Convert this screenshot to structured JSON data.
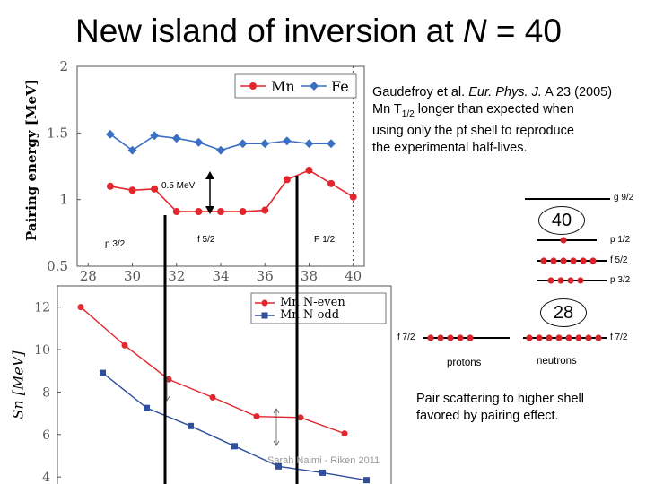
{
  "slide": {
    "title_text": "New island of inversion at ",
    "title_var": "N",
    "title_rest": " = 40"
  },
  "reference": {
    "line1_pre": "Gaudefroy et al. ",
    "line1_journal": "Eur. Phys.  J.",
    "line1_post": " A 23 (2005)",
    "line2_pre": "Mn T",
    "line2_sub": "1/2",
    "line2_post": " longer than expected when",
    "line3": "using only the pf shell to reproduce",
    "line4": "the experimental half-lives."
  },
  "annotations": {
    "gap": "0.5 MeV",
    "p32": "p 3/2",
    "f52": "f 5/2",
    "p12": "P 1/2"
  },
  "shell_diagram": {
    "g92": "g 9/2",
    "magic_40": "40",
    "n_p12": "p 1/2",
    "n_f52": "f 5/2",
    "n_p32": "p 3/2",
    "magic_28": "28",
    "p_f72": "f 7/2",
    "n_f72": "f 7/2",
    "protons": "protons",
    "neutrons": "neutrons"
  },
  "conclusion": {
    "line1": "Pair scattering to higher shell",
    "line2": "favored by pairing effect."
  },
  "footer": "Sarah Naimi - Riken 2011",
  "chart_data": [
    {
      "type": "line",
      "ylabel": "Pairing energy [MeV]",
      "ylim": [
        0.5,
        2
      ],
      "xlim": [
        27.5,
        40.5
      ],
      "x_ticks": [
        28,
        30,
        32,
        34,
        36,
        38,
        40
      ],
      "y_ticks": [
        "0.5",
        "1",
        "1.5",
        "2"
      ],
      "legend_position": "top-right",
      "dashed_x": 40,
      "series": [
        {
          "name": "Mn",
          "color": "#e3262e",
          "marker": "circle",
          "x": [
            29,
            30,
            31,
            32,
            33,
            34,
            35,
            36,
            37,
            38,
            39,
            40
          ],
          "y": [
            1.1,
            1.07,
            1.08,
            0.91,
            0.91,
            0.91,
            0.91,
            0.92,
            1.15,
            1.22,
            1.12,
            1.02
          ]
        },
        {
          "name": "Fe",
          "color": "#3a6fc4",
          "marker": "diamond",
          "x": [
            29,
            30,
            31,
            32,
            33,
            34,
            35,
            36,
            37,
            38,
            39
          ],
          "y": [
            1.49,
            1.37,
            1.48,
            1.46,
            1.43,
            1.37,
            1.42,
            1.42,
            1.44,
            1.42,
            1.42
          ]
        }
      ]
    },
    {
      "type": "line",
      "ylabel": "Sn [MeV]",
      "ylim": [
        3.5,
        13
      ],
      "y_ticks": [
        "4",
        "6",
        "8",
        "10",
        "12"
      ],
      "legend_position": "top-right",
      "series": [
        {
          "name": "Mn N-even",
          "color": "#e3262e",
          "marker": "circle",
          "x": [
            28,
            30,
            32,
            34,
            36,
            38,
            40
          ],
          "y": [
            12.0,
            10.2,
            8.6,
            7.75,
            6.85,
            6.8,
            6.05
          ]
        },
        {
          "name": "Mn N-odd",
          "color": "#2f4e9c",
          "marker": "square",
          "x": [
            29,
            31,
            33,
            35,
            37,
            39,
            41
          ],
          "y": [
            8.9,
            7.25,
            6.4,
            5.45,
            4.5,
            4.2,
            3.85
          ]
        }
      ]
    }
  ]
}
